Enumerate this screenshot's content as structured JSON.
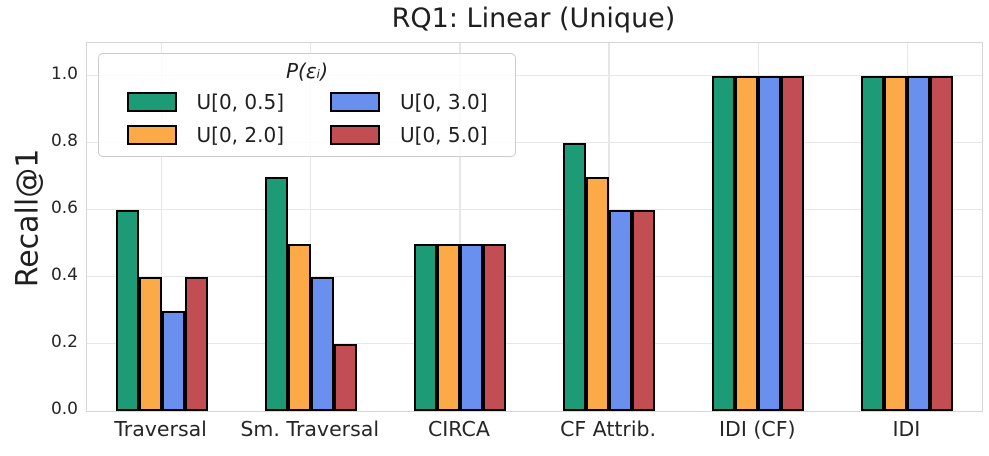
{
  "title": "RQ1: Linear (Unique)",
  "ylabel": "Recall@1",
  "legend": {
    "title": "P(εᵢ)",
    "entries": [
      {
        "label": "U[0, 0.5]",
        "color": "#1d9a76"
      },
      {
        "label": "U[0, 2.0]",
        "color": "#fcaa48"
      },
      {
        "label": "U[0, 3.0]",
        "color": "#6990ee"
      },
      {
        "label": "U[0, 5.0]",
        "color": "#c24e54"
      }
    ]
  },
  "chart_data": {
    "type": "bar",
    "title": "RQ1: Linear (Unique)",
    "xlabel": "",
    "ylabel": "Recall@1",
    "categories": [
      "Traversal",
      "Sm. Traversal",
      "CIRCA",
      "CF Attrib.",
      "IDI (CF)",
      "IDI"
    ],
    "series": [
      {
        "name": "U[0, 0.5]",
        "color": "#1d9a76",
        "values": [
          0.6,
          0.7,
          0.5,
          0.8,
          1.0,
          1.0
        ]
      },
      {
        "name": "U[0, 2.0]",
        "color": "#fcaa48",
        "values": [
          0.4,
          0.5,
          0.5,
          0.7,
          1.0,
          1.0
        ]
      },
      {
        "name": "U[0, 3.0]",
        "color": "#6990ee",
        "values": [
          0.3,
          0.4,
          0.5,
          0.6,
          1.0,
          1.0
        ]
      },
      {
        "name": "U[0, 5.0]",
        "color": "#c24e54",
        "values": [
          0.4,
          0.2,
          0.5,
          0.6,
          1.0,
          1.0
        ]
      }
    ],
    "edge_color": "#000000",
    "yticks": [
      0.0,
      0.2,
      0.4,
      0.6,
      0.8,
      1.0
    ],
    "ytick_labels": [
      "0.0",
      "0.2",
      "0.4",
      "0.6",
      "0.8",
      "1.0"
    ],
    "ylim": [
      0,
      1.1
    ],
    "grid": true,
    "legend_title": "P(εᵢ)",
    "legend_position": "upper left"
  }
}
